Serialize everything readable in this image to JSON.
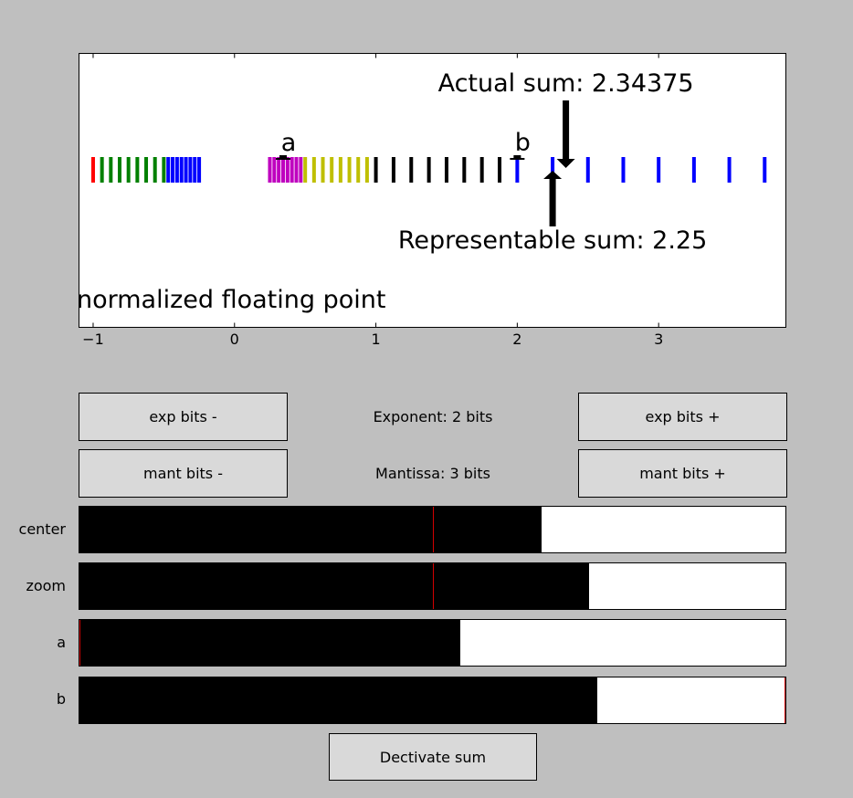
{
  "chart_data": {
    "type": "scatter",
    "title": "",
    "xlabel": "",
    "ylabel": "",
    "xlim": [
      -1.1,
      3.9
    ],
    "x_ticks": [
      -1,
      0,
      1,
      2,
      3
    ],
    "x_tick_labels": [
      "−1",
      "0",
      "1",
      "2",
      "3"
    ],
    "grid": false,
    "series": [
      {
        "color": "#ff0000",
        "values": [
          -1.0
        ]
      },
      {
        "color": "#008000",
        "values": [
          -0.9375,
          -0.875,
          -0.8125,
          -0.75,
          -0.6875,
          -0.625,
          -0.5625,
          -0.5
        ]
      },
      {
        "color": "#0000ff",
        "values": [
          -0.46875,
          -0.4375,
          -0.40625,
          -0.375,
          -0.34375,
          -0.3125,
          -0.28125,
          -0.25
        ]
      },
      {
        "color": "#bf00bf",
        "values": [
          0.25,
          0.28125,
          0.3125,
          0.34375,
          0.375,
          0.40625,
          0.4375,
          0.46875
        ]
      },
      {
        "color": "#bfbf00",
        "values": [
          0.5,
          0.5625,
          0.625,
          0.6875,
          0.75,
          0.8125,
          0.875,
          0.9375
        ]
      },
      {
        "color": "#000000",
        "values": [
          1.0,
          1.125,
          1.25,
          1.375,
          1.5,
          1.625,
          1.75,
          1.875
        ]
      },
      {
        "color": "#0000ff",
        "values": [
          2.0,
          2.25,
          2.5,
          2.75,
          3.0,
          3.25,
          3.5,
          3.75
        ]
      }
    ],
    "markers": [
      {
        "label": "a",
        "x": 0.34375
      },
      {
        "label": "b",
        "x": 2.0
      }
    ],
    "annotations": [
      {
        "text": "Actual sum: 2.34375",
        "x": 2.34375
      },
      {
        "text": "Representable sum: 2.25",
        "x": 2.25
      }
    ],
    "plot_label": "normalized floating point"
  },
  "controls": {
    "exp_minus": "exp bits -",
    "exp_plus": "exp bits +",
    "exponent_info": "Exponent: 2 bits",
    "mant_minus": "mant bits -",
    "mant_plus": "mant bits +",
    "mantissa_info": "Mantissa: 3 bits",
    "decimate": "Dectivate sum"
  },
  "sliders": [
    {
      "label": "center",
      "value": 0.655,
      "initial": 0.5
    },
    {
      "label": "zoom",
      "value": 0.722,
      "initial": 0.5
    },
    {
      "label": "a",
      "value": 0.54,
      "initial": 0.0
    },
    {
      "label": "b",
      "value": 0.733,
      "initial": 1.0
    }
  ],
  "colors": {
    "slider_fill": "#000000",
    "slider_initial_line": "#d40000",
    "background": "#bfbfbf"
  }
}
